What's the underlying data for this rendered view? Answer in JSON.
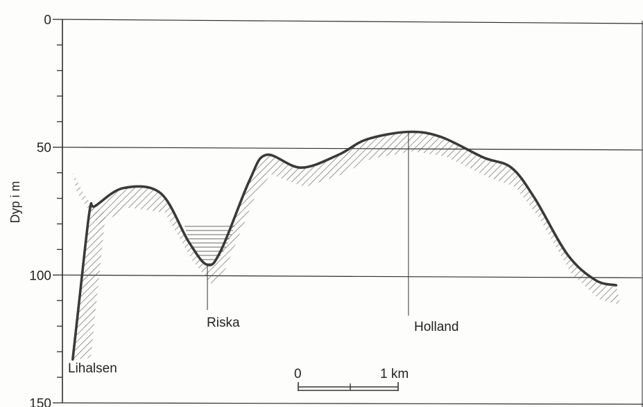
{
  "chart_data": {
    "type": "line",
    "title": "",
    "xlabel": "",
    "ylabel": "Dyp i m",
    "y_axis_inverted": true,
    "ylim": [
      0,
      150
    ],
    "y_ticks": [
      {
        "value": 0,
        "label": "0"
      },
      {
        "value": 50,
        "label": "50"
      },
      {
        "value": 100,
        "label": "100"
      },
      {
        "value": 150,
        "label": "150"
      }
    ],
    "y_minor_step": 10,
    "gridlines_at": [
      50,
      100
    ],
    "x_unit": "km",
    "xlim": [
      0,
      6.2
    ],
    "profile": {
      "x": [
        0.11,
        0.35,
        0.65,
        1.05,
        1.35,
        1.55,
        1.7,
        2.0,
        2.18,
        2.55,
        2.95,
        3.25,
        3.7,
        4.05,
        4.5,
        4.8,
        5.05,
        5.4,
        5.7,
        5.92
      ],
      "y": [
        60,
        73,
        66,
        68,
        87,
        96,
        90,
        63,
        53,
        58,
        53,
        47,
        44,
        46,
        54,
        58,
        70,
        92,
        102,
        104
      ]
    },
    "cliff": {
      "x": [
        0.11,
        0.18,
        0.24,
        0.3
      ],
      "y": [
        133,
        110,
        90,
        73
      ]
    },
    "annotations": [
      {
        "text": "Lihalsen"
      },
      {
        "text": "Riska"
      },
      {
        "text": "Holland"
      }
    ],
    "scale_bar": {
      "start_label": "0",
      "end_label": "1 km"
    },
    "colors": {
      "profile": "#3a3a3a",
      "hatch": "#555555",
      "grid": "#2c2c2c"
    }
  }
}
